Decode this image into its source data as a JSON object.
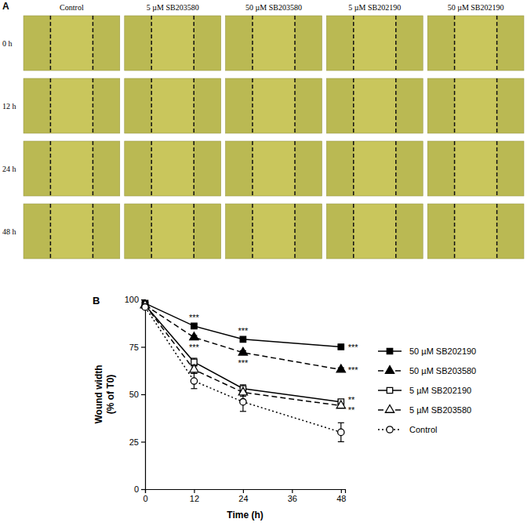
{
  "panel_labels": [
    "A",
    "B"
  ],
  "panel_a": {
    "columns": [
      "Control",
      "5 µM SB203580",
      "50 µM SB203580",
      "5 µM SB202190",
      "50 µM SB202190"
    ],
    "rows": [
      "0 h",
      "12 h",
      "24 h",
      "48 h"
    ]
  },
  "chart_data": {
    "type": "line",
    "x_label": "Time (h)",
    "y_label": "Wound width (% of T0)",
    "x": [
      0,
      12,
      24,
      48
    ],
    "xlim": [
      0,
      49
    ],
    "xticks": [
      0,
      12,
      24,
      36,
      48
    ],
    "ylim": [
      0,
      100
    ],
    "yticks": [
      0,
      25,
      50,
      75,
      100
    ],
    "legend": "right",
    "series": [
      {
        "name": "50 µM SB202190",
        "color": "#000000",
        "marker": "square",
        "line_style": "solid",
        "values": [
          98,
          86,
          79,
          75
        ],
        "errors": [
          1,
          1,
          1,
          1
        ],
        "annotations": [
          null,
          "***",
          "***",
          "***"
        ]
      },
      {
        "name": "50 µM SB203580",
        "color": "#000000",
        "marker": "triangle",
        "line_style": "dashed",
        "values": [
          97,
          80,
          72,
          63
        ],
        "errors": [
          1,
          1,
          1,
          1
        ],
        "annotations": [
          null,
          "***",
          "***",
          "***"
        ]
      },
      {
        "name": "5 µM SB202190",
        "color": "#000000",
        "marker": "square-open",
        "line_style": "solid",
        "values": [
          97,
          67,
          53,
          46
        ],
        "errors": [
          1,
          2,
          2,
          1
        ],
        "annotations": [
          null,
          null,
          null,
          "**"
        ]
      },
      {
        "name": "5 µM SB203580",
        "color": "#000000",
        "marker": "triangle-open",
        "line_style": "dashed",
        "values": [
          97,
          63,
          51,
          44
        ],
        "errors": [
          1,
          2,
          2,
          1
        ],
        "annotations": [
          null,
          null,
          null,
          "**"
        ]
      },
      {
        "name": "Control",
        "color": "#000000",
        "marker": "circle-open",
        "line_style": "dotted",
        "values": [
          96,
          57,
          46,
          30
        ],
        "errors": [
          1,
          4,
          5,
          5
        ],
        "annotations": [
          null,
          null,
          null,
          null
        ]
      }
    ]
  }
}
